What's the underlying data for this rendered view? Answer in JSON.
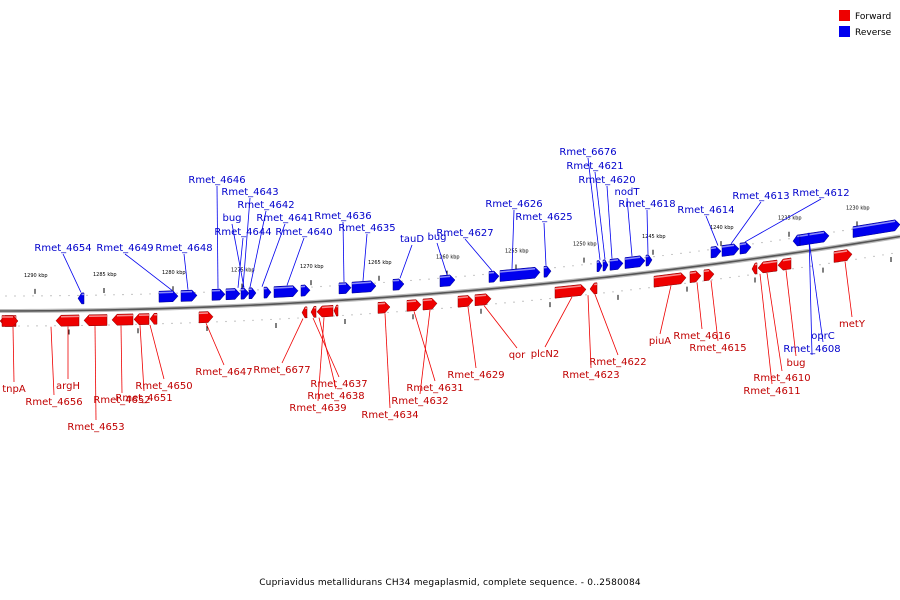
{
  "legend": [
    {
      "label": "Forward",
      "color": "#ee0000"
    },
    {
      "label": "Reverse",
      "color": "#0000ee"
    }
  ],
  "caption": "Cupriavidus metallidurans CH34 megaplasmid, complete sequence. - 0..2580084",
  "colors": {
    "forward": "#ee0000",
    "reverse": "#0000ee",
    "backbone": "#888888"
  },
  "ticks": [
    "1290 kbp",
    "1285 kbp",
    "1280 kbp",
    "1275 kbp",
    "1270 kbp",
    "1265 kbp",
    "1260 kbp",
    "1255 kbp",
    "1250 kbp",
    "1245 kbp",
    "1240 kbp",
    "1235 kbp",
    "1230 kbp"
  ],
  "reverse_labels": [
    "Rmet_4654",
    "Rmet_4649",
    "Rmet_4648",
    "Rmet_4646",
    "Rmet_4643",
    "Rmet_4642",
    "bug",
    "Rmet_4644",
    "Rmet_4641",
    "Rmet_4640",
    "Rmet_4636",
    "Rmet_4635",
    "tauD",
    "bug",
    "Rmet_4627",
    "Rmet_4626",
    "Rmet_4625",
    "Rmet_6676",
    "Rmet_4621",
    "Rmet_4620",
    "nodT",
    "Rmet_4618",
    "Rmet_4614",
    "Rmet_4613",
    "Rmet_4612",
    "oprC",
    "Rmet_4608"
  ],
  "forward_labels": [
    "tnpA",
    "Rmet_4656",
    "argH",
    "Rmet_4653",
    "Rmet_4652",
    "Rmet_4651",
    "Rmet_4650",
    "Rmet_4647",
    "Rmet_6677",
    "Rmet_4637",
    "Rmet_4638",
    "Rmet_4639",
    "Rmet_4634",
    "Rmet_4631",
    "Rmet_4632",
    "Rmet_4629",
    "qor",
    "plcN2",
    "Rmet_4623",
    "Rmet_4622",
    "piuA",
    "Rmet_4616",
    "Rmet_4615",
    "bug",
    "Rmet_4610",
    "Rmet_4611",
    "metY"
  ]
}
